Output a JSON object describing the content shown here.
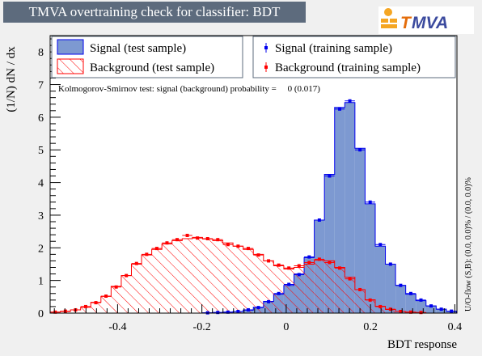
{
  "title": "TMVA overtraining check for classifier: BDT",
  "logo": {
    "letters": [
      "T",
      "MVA"
    ],
    "brand_colors": [
      "#f5a623",
      "#3b4a9e"
    ]
  },
  "colors": {
    "signal_fill": "#7d99d1",
    "signal_line": "#0000ee",
    "signal_marker": "#0000ee",
    "background_hatch": "#ff0000",
    "background_marker": "#ff0000",
    "frame": "#000000",
    "canvas": "#f0f0f0",
    "legend_border": "#5d6b7d"
  },
  "legend": {
    "left": [
      "Signal (test sample)",
      "Background (test sample)"
    ],
    "right": [
      "Signal (training sample)",
      "Background (training sample)"
    ]
  },
  "ks_text": "Kolmogorov-Smirnov test: signal (background) probability =     0 (0.017)",
  "overflow_text": "U/O-flow (S,B): (0.0, 0.0)% / (0.0, 0.0)%",
  "chart_data": {
    "type": "bar",
    "xlabel": "BDT response",
    "ylabel": "(1/N) dN / dx",
    "xlim": [
      -0.56,
      0.405
    ],
    "ylim": [
      0,
      8.5
    ],
    "xticks": [
      "-0.4",
      "-0.2",
      "0",
      "0.2",
      "0.4"
    ],
    "xtick_values": [
      -0.4,
      -0.2,
      0,
      0.2,
      0.4
    ],
    "yticks": [
      "0",
      "1",
      "2",
      "3",
      "4",
      "5",
      "6",
      "7",
      "8"
    ],
    "ytick_values": [
      0,
      1,
      2,
      3,
      4,
      5,
      6,
      7,
      8
    ],
    "bin_edges_start": -0.56,
    "bin_width": 0.0241,
    "n_bins": 40,
    "series": [
      {
        "name": "Signal (test sample)",
        "style": "filled-histogram",
        "values": [
          0,
          0,
          0,
          0,
          0,
          0,
          0,
          0,
          0,
          0,
          0,
          0,
          0,
          0,
          0,
          0.01,
          0.02,
          0.03,
          0.05,
          0.09,
          0.18,
          0.36,
          0.58,
          0.85,
          1.2,
          1.7,
          2.85,
          4.25,
          6.3,
          6.45,
          5.05,
          3.35,
          2.05,
          1.5,
          0.85,
          0.58,
          0.38,
          0.22,
          0.12,
          0.06
        ]
      },
      {
        "name": "Background (test sample)",
        "style": "hatched-histogram",
        "values": [
          0.03,
          0.05,
          0.1,
          0.18,
          0.33,
          0.51,
          0.82,
          1.15,
          1.5,
          1.78,
          1.95,
          2.12,
          2.22,
          2.28,
          2.32,
          2.27,
          2.22,
          2.15,
          2.05,
          1.95,
          1.8,
          1.6,
          1.45,
          1.35,
          1.4,
          1.5,
          1.62,
          1.6,
          1.4,
          1.1,
          0.72,
          0.41,
          0.21,
          0.11,
          0.05,
          0.03,
          0.01,
          0,
          0,
          0
        ]
      },
      {
        "name": "Signal (training sample)",
        "style": "markers",
        "values": [
          0,
          0,
          0,
          0,
          0,
          0,
          0,
          0,
          0,
          0,
          0,
          0,
          0,
          0,
          0,
          0.01,
          0.02,
          0.03,
          0.05,
          0.1,
          0.17,
          0.35,
          0.6,
          0.88,
          1.18,
          1.72,
          2.85,
          4.2,
          6.25,
          6.5,
          5.0,
          3.4,
          2.1,
          1.5,
          0.85,
          0.6,
          0.4,
          0.22,
          0.12,
          0.06
        ]
      },
      {
        "name": "Background (training sample)",
        "style": "markers",
        "values": [
          0.03,
          0.06,
          0.1,
          0.2,
          0.32,
          0.52,
          0.8,
          1.15,
          1.52,
          1.8,
          1.98,
          2.15,
          2.25,
          2.38,
          2.3,
          2.28,
          2.25,
          2.1,
          2.05,
          1.98,
          1.78,
          1.6,
          1.47,
          1.38,
          1.45,
          1.55,
          1.65,
          1.55,
          1.38,
          1.05,
          0.72,
          0.4,
          0.2,
          0.12,
          0.05,
          0.03,
          0.02,
          0,
          0,
          0
        ]
      }
    ]
  }
}
